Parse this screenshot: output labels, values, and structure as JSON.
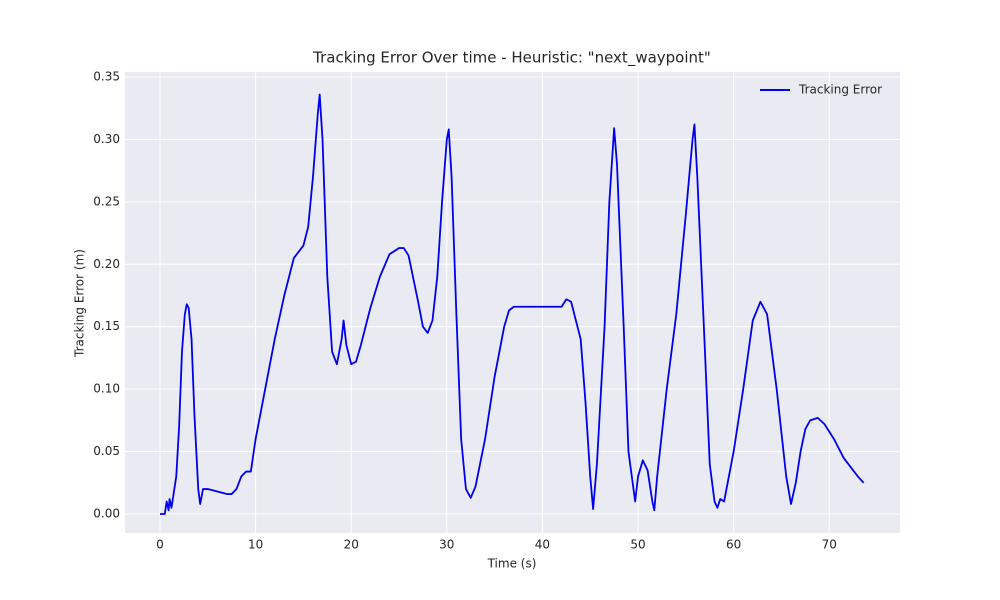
{
  "chart_data": {
    "type": "line",
    "title": "Tracking Error Over time - Heuristic: \"next_waypoint\"",
    "x_label": "Time (s)",
    "y_label": "Tracking Error (m)",
    "legend": "upper right",
    "grid": true,
    "xlim": [
      -3.66,
      77.4
    ],
    "ylim": [
      -0.0152,
      0.354
    ],
    "xticks": [
      0,
      10,
      20,
      30,
      40,
      50,
      60,
      70
    ],
    "yticks": [
      {
        "value": 0,
        "label": "0.00"
      },
      {
        "value": 0.05,
        "label": "0.05"
      },
      {
        "value": 0.1,
        "label": "0.10"
      },
      {
        "value": 0.15,
        "label": "0.15"
      },
      {
        "value": 0.2,
        "label": "0.20"
      },
      {
        "value": 0.25,
        "label": "0.25"
      },
      {
        "value": 0.3,
        "label": "0.30"
      },
      {
        "value": 0.35,
        "label": "0.35"
      }
    ],
    "x": [
      0,
      0.5,
      0.7,
      0.9,
      1.0,
      1.2,
      1.4,
      1.7,
      2.0,
      2.3,
      2.6,
      2.8,
      3.0,
      3.3,
      3.6,
      4.0,
      4.2,
      4.5,
      5.0,
      6.0,
      7.0,
      7.5,
      8.0,
      8.5,
      9.0,
      9.5,
      10,
      11,
      12,
      13,
      14,
      15,
      15.5,
      16,
      16.5,
      16.7,
      17,
      17.5,
      18,
      18.5,
      19,
      19.2,
      19.5,
      20,
      20.5,
      21,
      22,
      23,
      24,
      25,
      25.5,
      26,
      27,
      27.5,
      28,
      28.5,
      29,
      29.5,
      30,
      30.2,
      30.5,
      31,
      31.5,
      32,
      32.5,
      33,
      34,
      35,
      36,
      36.5,
      37,
      42,
      42.5,
      43,
      44,
      44.5,
      45,
      45.3,
      45.7,
      46.5,
      47,
      47.5,
      47.8,
      48.5,
      49,
      49.7,
      50,
      50.5,
      51,
      51.5,
      51.7,
      52,
      53,
      54,
      55,
      55.7,
      55.9,
      56.2,
      57,
      57.5,
      58,
      58.3,
      58.6,
      59,
      60,
      61,
      62,
      62.8,
      63.5,
      64.5,
      65.5,
      66,
      66.5,
      67,
      67.5,
      68,
      68.8,
      69.5,
      70.5,
      71.5,
      72.5,
      73,
      73.6
    ],
    "series": [
      {
        "name": "Tracking Error",
        "color": "#0000ee",
        "values": [
          0,
          0,
          0.01,
          0.003,
          0.012,
          0.005,
          0.015,
          0.03,
          0.07,
          0.13,
          0.16,
          0.168,
          0.165,
          0.14,
          0.08,
          0.02,
          0.008,
          0.02,
          0.02,
          0.018,
          0.016,
          0.016,
          0.02,
          0.03,
          0.034,
          0.034,
          0.06,
          0.1,
          0.14,
          0.175,
          0.205,
          0.215,
          0.23,
          0.27,
          0.32,
          0.336,
          0.3,
          0.19,
          0.13,
          0.12,
          0.14,
          0.155,
          0.135,
          0.12,
          0.122,
          0.135,
          0.165,
          0.19,
          0.208,
          0.213,
          0.213,
          0.207,
          0.17,
          0.15,
          0.145,
          0.155,
          0.19,
          0.25,
          0.3,
          0.308,
          0.27,
          0.16,
          0.06,
          0.02,
          0.013,
          0.022,
          0.06,
          0.11,
          0.15,
          0.163,
          0.166,
          0.166,
          0.172,
          0.17,
          0.14,
          0.09,
          0.03,
          0.004,
          0.04,
          0.15,
          0.25,
          0.309,
          0.28,
          0.15,
          0.05,
          0.01,
          0.03,
          0.043,
          0.035,
          0.01,
          0.003,
          0.03,
          0.1,
          0.16,
          0.24,
          0.3,
          0.312,
          0.27,
          0.13,
          0.04,
          0.01,
          0.005,
          0.012,
          0.01,
          0.05,
          0.1,
          0.155,
          0.17,
          0.16,
          0.1,
          0.03,
          0.008,
          0.025,
          0.05,
          0.068,
          0.075,
          0.077,
          0.072,
          0.06,
          0.045,
          0.035,
          0.03,
          0.025
        ]
      }
    ]
  }
}
